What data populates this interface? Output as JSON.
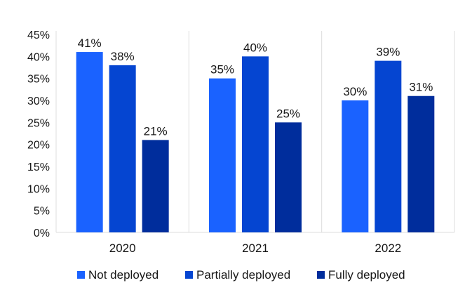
{
  "chart_data": {
    "type": "bar",
    "categories": [
      "2020",
      "2021",
      "2022"
    ],
    "series": [
      {
        "name": "Not deployed",
        "values": [
          41,
          35,
          30
        ],
        "color": "#1a62ff"
      },
      {
        "name": "Partially deployed",
        "values": [
          38,
          40,
          39
        ],
        "color": "#0545d1"
      },
      {
        "name": "Fully deployed",
        "values": [
          21,
          25,
          31
        ],
        "color": "#002d9c"
      }
    ],
    "value_suffix": "%",
    "ylim": [
      0,
      45
    ],
    "yticks": [
      0,
      5,
      10,
      15,
      20,
      25,
      30,
      35,
      40,
      45
    ],
    "ytick_labels": [
      "0%",
      "5%",
      "10%",
      "15%",
      "20%",
      "25%",
      "30%",
      "35%",
      "40%",
      "45%"
    ],
    "grid": "vertical separators between categories",
    "legend_position": "bottom-center"
  }
}
